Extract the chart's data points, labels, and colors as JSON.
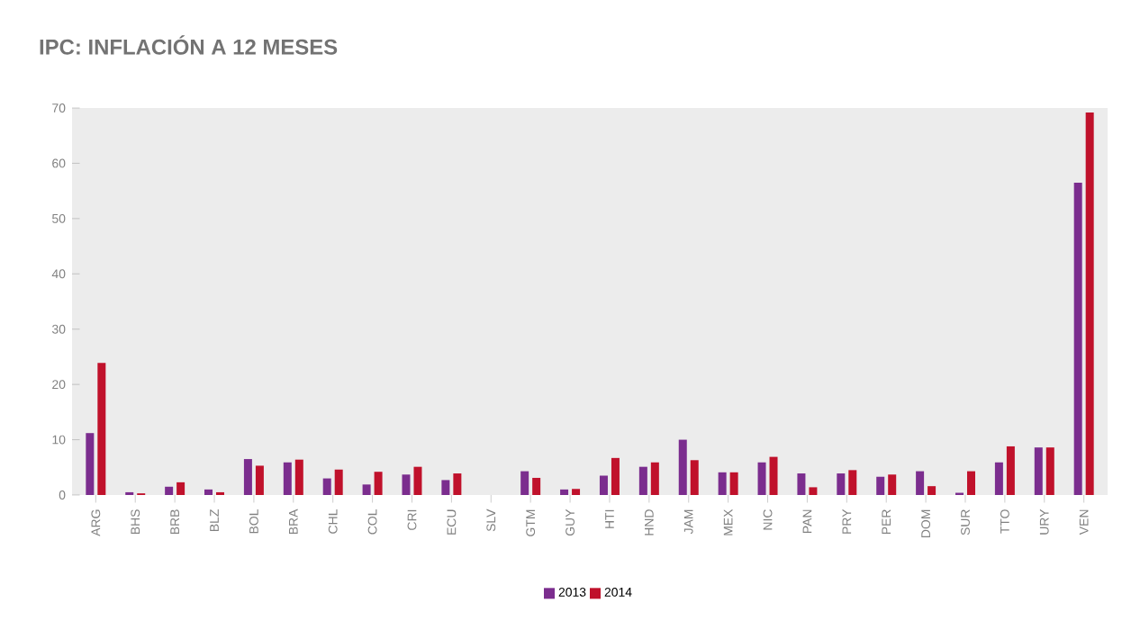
{
  "chart_data": {
    "type": "bar",
    "title": "IPC: INFLACIÓN A 12 MESES",
    "categories": [
      "ARG",
      "BHS",
      "BRB",
      "BLZ",
      "BOL",
      "BRA",
      "CHL",
      "COL",
      "CRI",
      "ECU",
      "SLV",
      "GTM",
      "GUY",
      "HTI",
      "HND",
      "JAM",
      "MEX",
      "NIC",
      "PAN",
      "PRY",
      "PER",
      "DOM",
      "SUR",
      "TTO",
      "URY",
      "VEN"
    ],
    "series": [
      {
        "name": "2013",
        "color": "#7b2d8e",
        "values": [
          11.2,
          0.5,
          1.5,
          1.0,
          6.5,
          5.9,
          3.0,
          1.9,
          3.7,
          2.7,
          null,
          4.3,
          1.0,
          3.5,
          5.1,
          10.0,
          4.1,
          5.9,
          3.9,
          3.9,
          3.3,
          4.3,
          0.4,
          5.9,
          8.6,
          56.5
        ]
      },
      {
        "name": "2014",
        "color": "#c0112b",
        "values": [
          23.9,
          0.3,
          2.3,
          0.5,
          5.3,
          6.4,
          4.6,
          4.2,
          5.1,
          3.9,
          null,
          3.1,
          1.1,
          6.7,
          5.9,
          6.3,
          4.1,
          6.9,
          1.4,
          4.5,
          3.7,
          1.6,
          4.3,
          8.8,
          8.6,
          69.2
        ]
      }
    ],
    "ylim": [
      0,
      70
    ],
    "yticks": [
      0,
      10,
      20,
      30,
      40,
      50,
      60,
      70
    ],
    "legend": "bottom"
  }
}
